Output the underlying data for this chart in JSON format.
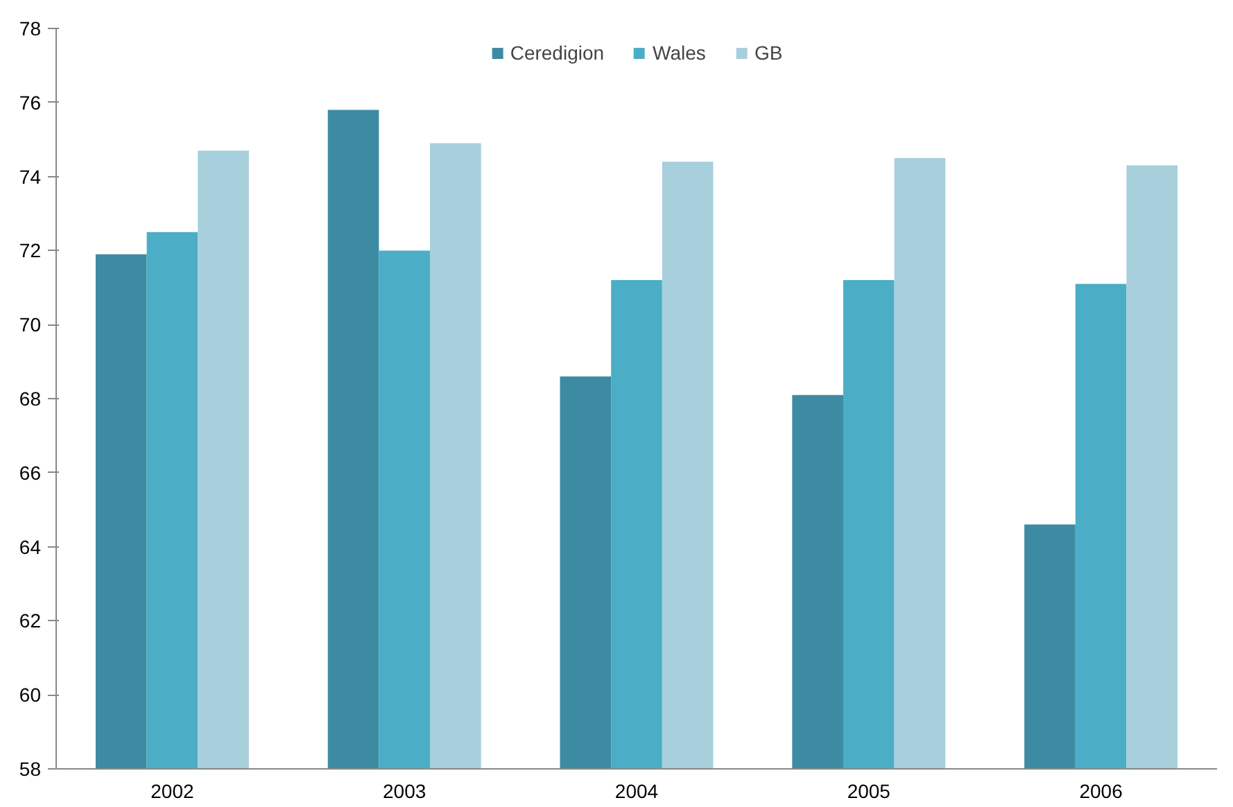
{
  "chart_data": {
    "type": "bar",
    "categories": [
      "2002",
      "2003",
      "2004",
      "2005",
      "2006"
    ],
    "series": [
      {
        "name": "Ceredigion",
        "color": "#3d8ba3",
        "values": [
          71.9,
          75.8,
          68.6,
          68.1,
          64.6
        ]
      },
      {
        "name": "Wales",
        "color": "#4badc6",
        "values": [
          72.5,
          72.0,
          71.2,
          71.2,
          71.1
        ]
      },
      {
        "name": "GB",
        "color": "#a8cfdc",
        "values": [
          74.7,
          74.9,
          74.4,
          74.5,
          74.3
        ]
      }
    ],
    "ylim": [
      58,
      78
    ],
    "yticks": [
      58,
      60,
      62,
      64,
      66,
      68,
      70,
      72,
      74,
      76,
      78
    ],
    "grid": false,
    "legend": "top"
  }
}
